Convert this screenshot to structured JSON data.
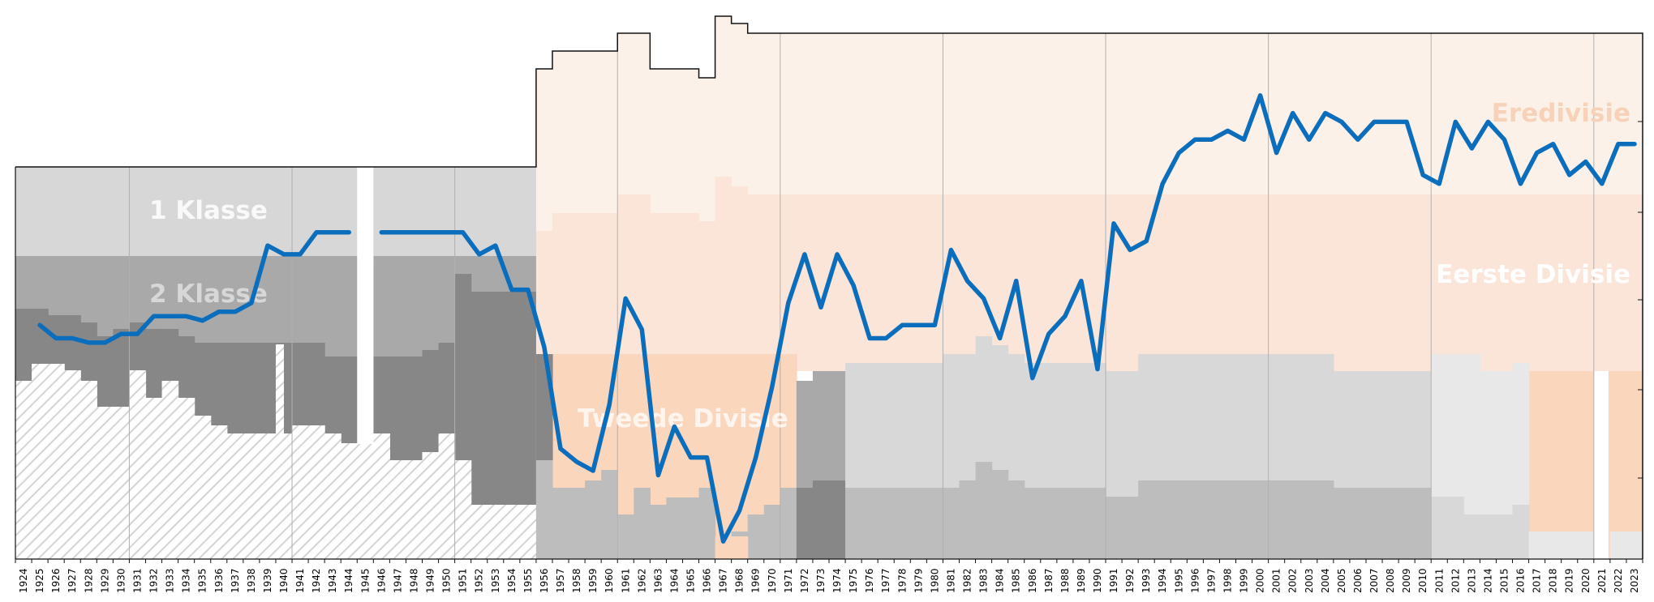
{
  "chart_data": {
    "type": "line",
    "title": "",
    "xlabel": "",
    "ylabel": "",
    "x_tick_labels": [
      "1924",
      "1925",
      "1926",
      "1927",
      "1928",
      "1929",
      "1930",
      "1931",
      "1932",
      "1933",
      "1934",
      "1935",
      "1936",
      "1937",
      "1938",
      "1939",
      "1940",
      "1941",
      "1942",
      "1943",
      "1944",
      "1945",
      "1946",
      "1947",
      "1948",
      "1949",
      "1950",
      "1951",
      "1952",
      "1953",
      "1954",
      "1955",
      "1956",
      "1957",
      "1958",
      "1959",
      "1960",
      "1961",
      "1962",
      "1963",
      "1964",
      "1965",
      "1966",
      "1967",
      "1968",
      "1969",
      "1970",
      "1971",
      "1972",
      "1973",
      "1974",
      "1975",
      "1976",
      "1977",
      "1978",
      "1979",
      "1980",
      "1981",
      "1982",
      "1983",
      "1984",
      "1985",
      "1986",
      "1987",
      "1988",
      "1989",
      "1990",
      "1991",
      "1992",
      "1993",
      "1994",
      "1995",
      "1996",
      "1997",
      "1998",
      "1999",
      "2000",
      "2001",
      "2002",
      "2003",
      "2004",
      "2005",
      "2006",
      "2007",
      "2008",
      "2009",
      "2010",
      "2011",
      "2012",
      "2013",
      "2014",
      "2015",
      "2016",
      "2017",
      "2018",
      "2019",
      "2020",
      "2021",
      "2022",
      "2023"
    ],
    "level_labels": [
      "Eredivisie",
      "Eerste Divisie",
      "Tweede Divisie",
      "1 Klasse",
      "2 Klasse"
    ],
    "colors": {
      "line": "#0a6ebd",
      "eredivisie": "#fcf1e8",
      "eerste": "#fbe5d8",
      "tweede": "#fad6bd",
      "klasse1": "#d7d7d7",
      "klasse2": "#a9a9a9",
      "lower_dark": "#878787",
      "lower_mid": "#bdbdbd",
      "lower_light": "#d8d8d8",
      "lower_pale": "#e8e8e8",
      "hatch": "#d4d4d4",
      "divider": "#b0b0b0"
    },
    "series": [
      {
        "values": [
          [
            1925,
            6.3
          ],
          [
            1926,
            6.0
          ],
          [
            1927,
            6.0
          ],
          [
            1928,
            5.9
          ],
          [
            1929,
            5.9
          ],
          [
            1930,
            6.1
          ],
          [
            1931,
            6.1
          ],
          [
            1932,
            6.5
          ],
          [
            1933,
            6.5
          ],
          [
            1934,
            6.5
          ],
          [
            1935,
            6.4
          ],
          [
            1936,
            6.6
          ],
          [
            1937,
            6.6
          ],
          [
            1938,
            6.8
          ],
          [
            1939,
            8.1
          ],
          [
            1940,
            7.9
          ],
          [
            1941,
            7.9
          ],
          [
            1942,
            8.4
          ],
          [
            1943,
            8.4
          ],
          [
            1944,
            8.4
          ],
          [
            1945,
            null
          ],
          [
            1946,
            8.4
          ],
          [
            1947,
            8.4
          ],
          [
            1948,
            8.4
          ],
          [
            1949,
            8.4
          ],
          [
            1950,
            8.4
          ],
          [
            1951,
            8.4
          ],
          [
            1952,
            7.9
          ],
          [
            1953,
            8.1
          ],
          [
            1954,
            7.1
          ],
          [
            1955,
            7.1
          ],
          [
            1956,
            5.8
          ],
          [
            1957,
            3.5
          ],
          [
            1958,
            3.2
          ],
          [
            1959,
            3.0
          ],
          [
            1960,
            4.5
          ],
          [
            1961,
            6.9
          ],
          [
            1962,
            6.2
          ],
          [
            1963,
            2.9
          ],
          [
            1964,
            4.0
          ],
          [
            1965,
            3.3
          ],
          [
            1966,
            3.3
          ],
          [
            1967,
            1.4
          ],
          [
            1968,
            2.1
          ],
          [
            1969,
            3.3
          ],
          [
            1970,
            4.9
          ],
          [
            1971,
            6.8
          ],
          [
            1972,
            7.9
          ],
          [
            1973,
            6.7
          ],
          [
            1974,
            7.9
          ],
          [
            1975,
            7.2
          ],
          [
            1976,
            6.0
          ],
          [
            1977,
            6.0
          ],
          [
            1978,
            6.3
          ],
          [
            1979,
            6.3
          ],
          [
            1980,
            6.3
          ],
          [
            1981,
            8.0
          ],
          [
            1982,
            7.3
          ],
          [
            1983,
            6.9
          ],
          [
            1984,
            6.0
          ],
          [
            1985,
            7.3
          ],
          [
            1986,
            5.1
          ],
          [
            1987,
            6.1
          ],
          [
            1988,
            6.5
          ],
          [
            1989,
            7.3
          ],
          [
            1990,
            5.3
          ],
          [
            1991,
            8.6
          ],
          [
            1992,
            8.0
          ],
          [
            1993,
            8.2
          ],
          [
            1994,
            9.5
          ],
          [
            1995,
            10.2
          ],
          [
            1996,
            10.5
          ],
          [
            1997,
            10.5
          ],
          [
            1998,
            10.7
          ],
          [
            1999,
            10.5
          ],
          [
            2000,
            11.5
          ],
          [
            2001,
            10.2
          ],
          [
            2002,
            11.1
          ],
          [
            2003,
            10.5
          ],
          [
            2004,
            11.1
          ],
          [
            2005,
            10.9
          ],
          [
            2006,
            10.5
          ],
          [
            2007,
            10.9
          ],
          [
            2008,
            10.9
          ],
          [
            2009,
            10.9
          ],
          [
            2010,
            9.7
          ],
          [
            2011,
            9.5
          ],
          [
            2012,
            10.9
          ],
          [
            2013,
            10.3
          ],
          [
            2014,
            10.9
          ],
          [
            2015,
            10.5
          ],
          [
            2016,
            9.5
          ],
          [
            2017,
            10.2
          ],
          [
            2018,
            10.4
          ],
          [
            2019,
            9.7
          ],
          [
            2020,
            10.0
          ],
          [
            2021,
            9.5
          ],
          [
            2022,
            10.4
          ],
          [
            2023,
            10.4
          ]
        ]
      }
    ]
  }
}
